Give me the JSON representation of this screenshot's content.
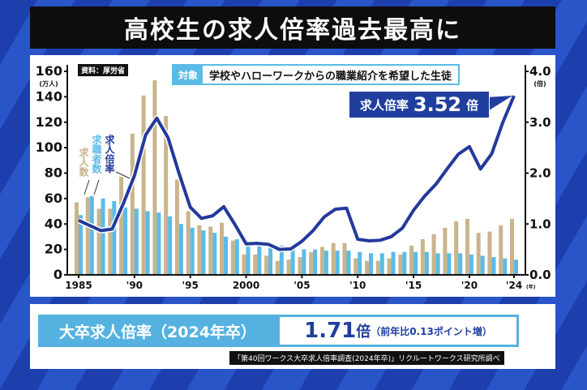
{
  "title": "高校生の求人倍率過去最高に",
  "source": "資料：厚労省",
  "target": {
    "label": "対象",
    "text": "学校やハローワークからの職業紹介を希望した生徒"
  },
  "callout": {
    "label": "求人倍率",
    "value": "3.52",
    "unit": "倍"
  },
  "bottom": {
    "label": "大卒求人倍率（2024年卒）",
    "value": "1.71",
    "unit": "倍",
    "change": "（前年比0.13ポイント増）",
    "note": "「第40回ワークス大卒求人倍率調査(2024年卒)」リクルートワークス研究所調べ"
  },
  "colors": {
    "offers": "#c9b48c",
    "seekers": "#5bbbe6",
    "ratio": "#23399c"
  },
  "chart_data": {
    "type": "bar+line",
    "x": [
      1985,
      1986,
      1987,
      1988,
      1989,
      1990,
      1991,
      1992,
      1993,
      1994,
      1995,
      1996,
      1997,
      1998,
      1999,
      2000,
      2001,
      2002,
      2003,
      2004,
      2005,
      2006,
      2007,
      2008,
      2009,
      2010,
      2011,
      2012,
      2013,
      2014,
      2015,
      2016,
      2017,
      2018,
      2019,
      2020,
      2021,
      2022,
      2023,
      2024
    ],
    "xticks": [
      {
        "v": 1985,
        "l": "1985"
      },
      {
        "v": 1990,
        "l": "'90"
      },
      {
        "v": 1995,
        "l": "'95"
      },
      {
        "v": 2000,
        "l": "2000"
      },
      {
        "v": 2005,
        "l": "'05"
      },
      {
        "v": 2010,
        "l": "'10"
      },
      {
        "v": 2015,
        "l": "'15"
      },
      {
        "v": 2020,
        "l": "'20"
      },
      {
        "v": 2024,
        "l": "'24"
      }
    ],
    "xunit": "(年)",
    "yleft": {
      "unit": "(万人)",
      "range": [
        0,
        160
      ],
      "ticks": [
        "0",
        "20",
        "40",
        "60",
        "80",
        "100",
        "120",
        "140",
        "160"
      ]
    },
    "yright": {
      "unit": "(倍)",
      "range": [
        0,
        4
      ],
      "ticks": [
        "0.0",
        "1.0",
        "2.0",
        "3.0",
        "4.0"
      ]
    },
    "series": [
      {
        "name": "求人数",
        "axis": "left",
        "type": "bar",
        "values": [
          57,
          61,
          52,
          52,
          77,
          111,
          141,
          153,
          125,
          75,
          50,
          39,
          38,
          41,
          27,
          16,
          16,
          15,
          11,
          12,
          14,
          18,
          22,
          25,
          25,
          13,
          11,
          11,
          13,
          16,
          23,
          28,
          32,
          37,
          42,
          44,
          33,
          34,
          39,
          44
        ]
      },
      {
        "name": "求職者数",
        "axis": "left",
        "type": "bar",
        "values": [
          47,
          62,
          60,
          58,
          53,
          52,
          50,
          49,
          46,
          40,
          37,
          35,
          33,
          30,
          28,
          25,
          24,
          22,
          23,
          21,
          20,
          20,
          19,
          19,
          19,
          18,
          17,
          17,
          18,
          18,
          18,
          18,
          17,
          17,
          17,
          16,
          15,
          14,
          13,
          12
        ]
      },
      {
        "name": "求人倍率",
        "axis": "right",
        "type": "line",
        "values": [
          1.07,
          0.97,
          0.87,
          0.9,
          1.4,
          1.95,
          2.75,
          3.08,
          2.7,
          1.99,
          1.33,
          1.11,
          1.16,
          1.34,
          0.99,
          0.61,
          0.62,
          0.6,
          0.5,
          0.51,
          0.66,
          0.87,
          1.14,
          1.29,
          1.31,
          0.7,
          0.67,
          0.68,
          0.75,
          0.92,
          1.27,
          1.55,
          1.78,
          2.08,
          2.37,
          2.52,
          2.08,
          2.38,
          3.0,
          3.52
        ]
      }
    ]
  }
}
